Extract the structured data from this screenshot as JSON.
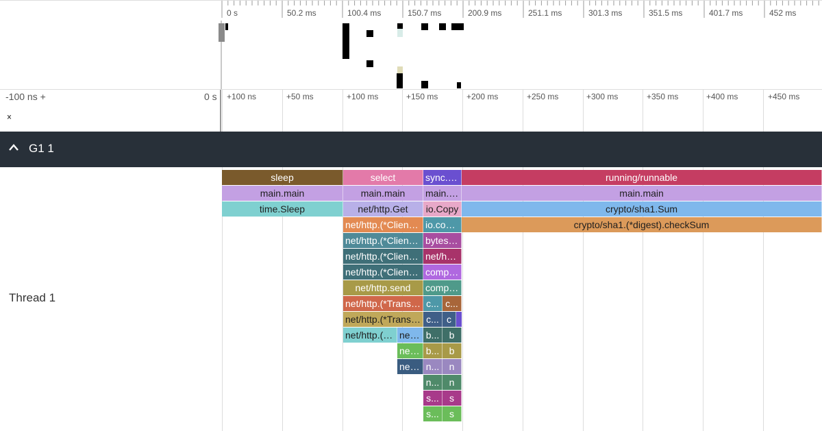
{
  "top_ruler": {
    "ticks": [
      "0 s",
      "50.2 ms",
      "100.4 ms",
      "150.7 ms",
      "200.9 ms",
      "251.1 ms",
      "301.3 ms",
      "351.5 ms",
      "401.7 ms",
      "452 ms"
    ]
  },
  "mid_ruler": {
    "left_label": "-100 ns +",
    "zero_label": "0 s",
    "ticks": [
      "+100 ns",
      "+50 ms",
      "+100 ms",
      "+150 ms",
      "+200 ms",
      "+250 ms",
      "+300 ms",
      "+350 ms",
      "+400 ms",
      "+450 ms"
    ]
  },
  "collapse": {
    "down": "⌄",
    "up": "⌃"
  },
  "group": {
    "title": "G1 1",
    "chevron": "^"
  },
  "thread": {
    "label": "Thread 1"
  },
  "colors": {
    "brown": "#7a5a2c",
    "pink": "#e37aa9",
    "indigo": "#6a4fd0",
    "crimson": "#c53d62",
    "lavender": "#c3a0e3",
    "teal": "#7fd0d0",
    "blue": "#7fb8ec",
    "orange": "#e38a52",
    "sand": "#dc9a5a",
    "slate": "#4f8a98",
    "darkteal": "#3f6f78",
    "olive": "#a89a48",
    "rust": "#d0674a",
    "gold": "#c0a85a",
    "wine": "#a8336a",
    "purple": "#b068e0",
    "sea": "#4f9a8a",
    "green": "#6bbd5a",
    "navy": "#3a5c80",
    "plum": "#a84da0",
    "cadet": "#4e98a8"
  },
  "slices": [
    {
      "text": "sleep",
      "color": "#7a5a2c",
      "dark": false
    },
    {
      "text": "main.main",
      "color": "#c3a0e3",
      "dark": true
    },
    {
      "text": "time.Sleep",
      "color": "#7fd0d0",
      "dark": true
    },
    {
      "text": "select",
      "color": "#e37aa9",
      "dark": false
    },
    {
      "text": "main.main",
      "color": "#c3a0e3",
      "dark": true
    },
    {
      "text": "net/http.Get",
      "color": "#b8b0e8",
      "dark": true
    },
    {
      "text": "net/http.(*Client).Get",
      "color": "#e38a52",
      "dark": false
    },
    {
      "text": "net/http.(*Client).Do",
      "color": "#4f8a98",
      "dark": false
    },
    {
      "text": "net/http.(*Client).do",
      "color": "#3f6f78",
      "dark": false
    },
    {
      "text": "net/http.(*Client).send",
      "color": "#3f6f78",
      "dark": false
    },
    {
      "text": "net/http.send",
      "color": "#a89a48",
      "dark": false
    },
    {
      "text": "net/http.(*Transport).RoundTrip",
      "color": "#d0674a",
      "dark": false
    },
    {
      "text": "net/http.(*Transport).roundTrip",
      "color": "#c0a85a",
      "dark": true
    },
    {
      "text": "net/http.(*Transport).getConn",
      "color": "#7fd0d0",
      "dark": true
    },
    {
      "text": "net/http...",
      "color": "#7fb8ec",
      "dark": true
    },
    {
      "text": "net/http...",
      "color": "#6bbd5a",
      "dark": false
    },
    {
      "text": "net/http...",
      "color": "#3a5c80",
      "dark": false
    },
    {
      "text": "sync.WaitGroup",
      "color": "#6a4fd0",
      "dark": false
    },
    {
      "text": "main.main",
      "color": "#c3a0e3",
      "dark": true
    },
    {
      "text": "io.Copy",
      "color": "#e8a8c8",
      "dark": true
    },
    {
      "text": "io.copyBuffer",
      "color": "#4e98a8",
      "dark": false
    },
    {
      "text": "bytes.(*Buffer).ReadFrom",
      "color": "#a84da0",
      "dark": false
    },
    {
      "text": "net/http.(*body).Read",
      "color": "#a8336a",
      "dark": false
    },
    {
      "text": "compress/gzip.(*Reader).Read",
      "color": "#b068e0",
      "dark": false
    },
    {
      "text": "compress/flate.(*decompressor).Read",
      "color": "#4f9a8a",
      "dark": false
    },
    {
      "text": "c...",
      "color": "#4e98a8",
      "dark": false
    },
    {
      "text": "c...",
      "color": "#a8663a",
      "dark": false
    },
    {
      "text": "c...",
      "color": "#3f5f88",
      "dark": false
    },
    {
      "text": "c",
      "color": "#3f5f88",
      "dark": false
    },
    {
      "text": "b...",
      "color": "#3f6f68",
      "dark": false
    },
    {
      "text": "b",
      "color": "#3f6f68",
      "dark": false
    },
    {
      "text": "b...",
      "color": "#a89a48",
      "dark": false
    },
    {
      "text": "b",
      "color": "#a89a48",
      "dark": false
    },
    {
      "text": "n...",
      "color": "#9a88c0",
      "dark": false
    },
    {
      "text": "n",
      "color": "#9a88c0",
      "dark": false
    },
    {
      "text": "n...",
      "color": "#4f8a6a",
      "dark": false
    },
    {
      "text": "n",
      "color": "#4f8a6a",
      "dark": false
    },
    {
      "text": "s...",
      "color": "#a83a8a",
      "dark": false
    },
    {
      "text": "s",
      "color": "#a83a8a",
      "dark": false
    },
    {
      "text": "s...",
      "color": "#6bbd5a",
      "dark": false
    },
    {
      "text": "s",
      "color": "#6bbd5a",
      "dark": false
    },
    {
      "text": "running/runnable",
      "color": "#c53d62",
      "dark": false
    },
    {
      "text": "main.main",
      "color": "#c3a0e3",
      "dark": true
    },
    {
      "text": "crypto/sha1.Sum",
      "color": "#7fb8ec",
      "dark": true
    },
    {
      "text": "crypto/sha1.(*digest).checkSum",
      "color": "#dc9a5a",
      "dark": true
    }
  ]
}
